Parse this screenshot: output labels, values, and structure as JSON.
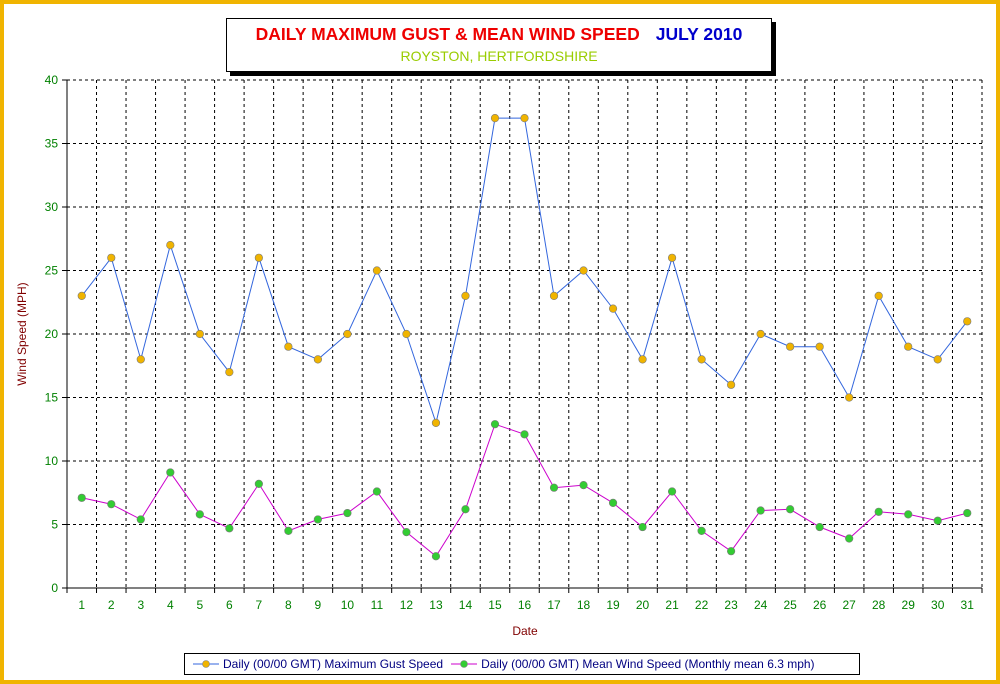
{
  "title": {
    "main": "DAILY MAXIMUM GUST & MEAN WIND SPEED",
    "date": "JULY 2010",
    "subtitle": "ROYSTON, HERTFORDSHIRE"
  },
  "chart_data": {
    "type": "line",
    "xlabel": "Date",
    "ylabel": "Wind Speed (MPH)",
    "ylim": [
      0,
      40
    ],
    "yticks": [
      0,
      5,
      10,
      15,
      20,
      25,
      30,
      35,
      40
    ],
    "x": [
      1,
      2,
      3,
      4,
      5,
      6,
      7,
      8,
      9,
      10,
      11,
      12,
      13,
      14,
      15,
      16,
      17,
      18,
      19,
      20,
      21,
      22,
      23,
      24,
      25,
      26,
      27,
      28,
      29,
      30,
      31
    ],
    "grid": true,
    "legend_position": "bottom",
    "series": [
      {
        "name": "Daily (00/00 GMT) Maximum Gust Speed",
        "line_color": "#3366dd",
        "marker_color": "#f0b400",
        "values": [
          23,
          26,
          18,
          27,
          20,
          17,
          26,
          19,
          18,
          20,
          25,
          20,
          13,
          23,
          37,
          37,
          23,
          25,
          22,
          18,
          26,
          18,
          16,
          20,
          19,
          19,
          15,
          23,
          19,
          18,
          21
        ]
      },
      {
        "name": "Daily (00/00 GMT) Mean Wind Speed (Monthly mean 6.3 mph)",
        "line_color": "#cc00cc",
        "marker_color": "#33cc33",
        "values": [
          7.1,
          6.6,
          5.4,
          9.1,
          5.8,
          4.7,
          8.2,
          4.5,
          5.4,
          5.9,
          7.6,
          4.4,
          2.5,
          6.2,
          12.9,
          12.1,
          7.9,
          8.1,
          6.7,
          4.8,
          7.6,
          4.5,
          2.9,
          6.1,
          6.2,
          4.8,
          3.9,
          6.0,
          5.8,
          5.3,
          5.9
        ]
      }
    ],
    "colors": {
      "axis_label": "#800000",
      "tick_label": "#008000",
      "legend_text": "#000080"
    }
  }
}
